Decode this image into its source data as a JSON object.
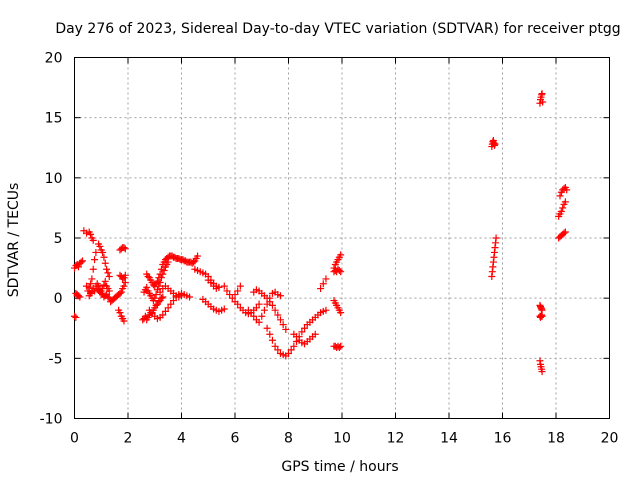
{
  "chart_data": {
    "type": "scatter",
    "title": "Day 276 of 2023, Sidereal Day-to-day VTEC variation (SDTVAR) for receiver ptgg",
    "xlabel": "GPS time / hours",
    "ylabel": "SDTVAR / TECUs",
    "xlim": [
      0,
      20
    ],
    "ylim": [
      -10,
      20
    ],
    "xticks": [
      0,
      2,
      4,
      6,
      8,
      10,
      12,
      14,
      16,
      18,
      20
    ],
    "yticks": [
      -10,
      -5,
      0,
      5,
      10,
      15,
      20
    ],
    "grid": true,
    "marker": "+",
    "color": "#ff0000",
    "series": [
      {
        "name": "SDTVAR",
        "x": [
          0.0,
          0.05,
          0.1,
          0.15,
          0.2,
          0.25,
          0.3,
          0.0,
          0.05,
          0.1,
          0.15,
          0.2,
          0.05,
          0.1,
          0.35,
          0.45,
          0.55,
          0.6,
          0.65,
          0.7,
          0.45,
          0.5,
          0.55,
          0.6,
          0.65,
          0.7,
          0.75,
          0.8,
          0.55,
          0.6,
          0.65,
          0.7,
          0.75,
          0.8,
          0.85,
          0.9,
          0.95,
          1.0,
          1.05,
          1.1,
          1.15,
          1.2,
          1.25,
          1.3,
          0.9,
          0.95,
          1.0,
          1.05,
          1.1,
          1.15,
          1.2,
          1.25,
          1.3,
          0.85,
          0.9,
          0.95,
          1.0,
          1.05,
          1.1,
          1.15,
          1.2,
          1.25,
          1.3,
          1.35,
          1.4,
          1.45,
          1.5,
          1.55,
          1.6,
          1.65,
          1.7,
          1.75,
          1.8,
          1.85,
          1.9,
          1.7,
          1.75,
          1.8,
          1.85,
          1.9,
          1.65,
          1.7,
          1.75,
          1.8,
          1.85,
          1.7,
          1.75,
          1.8,
          1.85,
          1.9,
          2.55,
          2.6,
          2.65,
          2.7,
          2.75,
          2.8,
          2.85,
          2.9,
          2.95,
          3.0,
          3.05,
          3.1,
          3.15,
          3.2,
          3.25,
          3.3,
          2.6,
          2.65,
          2.7,
          2.75,
          2.8,
          2.85,
          2.9,
          2.95,
          3.0,
          3.05,
          3.1,
          3.15,
          3.2,
          3.25,
          3.3,
          3.35,
          3.4,
          3.45,
          3.5,
          2.7,
          2.75,
          2.8,
          2.85,
          2.9,
          2.95,
          3.0,
          3.05,
          3.1,
          3.15,
          3.2,
          3.25,
          3.3,
          3.35,
          3.4,
          3.45,
          3.5,
          3.55,
          3.6,
          3.65,
          3.7,
          3.75,
          3.8,
          3.85,
          3.9,
          3.95,
          4.0,
          4.05,
          4.1,
          4.15,
          4.2,
          4.25,
          4.3,
          4.35,
          4.4,
          4.45,
          4.5,
          4.55,
          4.6,
          2.8,
          2.9,
          3.0,
          3.1,
          3.2,
          3.3,
          3.4,
          3.5,
          3.6,
          3.7,
          3.8,
          3.9,
          4.0,
          4.1,
          4.2,
          4.3,
          3.2,
          3.3,
          3.4,
          3.5,
          3.6,
          3.7,
          3.8,
          3.9,
          4.0,
          4.5,
          4.6,
          4.7,
          4.8,
          4.9,
          5.0,
          5.1,
          5.2,
          5.3,
          5.4,
          4.8,
          4.9,
          5.0,
          5.1,
          5.2,
          5.3,
          5.4,
          5.5,
          5.6,
          5.0,
          5.1,
          5.2,
          5.3,
          5.4,
          5.6,
          5.7,
          5.8,
          5.9,
          6.0,
          6.1,
          6.2,
          6.0,
          6.1,
          6.2,
          6.3,
          6.4,
          6.5,
          6.6,
          6.7,
          6.8,
          6.9,
          6.5,
          6.6,
          6.7,
          6.8,
          6.9,
          7.0,
          7.1,
          7.2,
          7.3,
          7.4,
          7.5,
          7.6,
          7.7,
          6.7,
          6.8,
          6.9,
          7.0,
          7.1,
          7.2,
          7.3,
          7.4,
          7.5,
          7.6,
          7.7,
          7.8,
          7.9,
          7.2,
          7.3,
          7.4,
          7.5,
          7.6,
          7.7,
          7.8,
          7.9,
          8.0,
          8.1,
          8.2,
          8.3,
          8.4,
          8.5,
          8.6,
          8.7,
          8.8,
          8.9,
          9.0,
          9.1,
          9.2,
          9.3,
          9.4,
          8.2,
          8.3,
          8.4,
          8.5,
          8.6,
          8.7,
          8.8,
          8.9,
          9.0,
          9.2,
          9.3,
          9.4,
          9.7,
          9.75,
          9.8,
          9.85,
          9.9,
          9.95,
          9.7,
          9.75,
          9.8,
          9.85,
          9.9,
          9.95,
          9.7,
          9.75,
          9.8,
          9.85,
          9.9,
          9.95,
          9.7,
          9.75,
          9.8,
          9.85,
          9.9,
          9.95,
          15.6,
          15.62,
          15.64,
          15.66,
          15.68,
          15.7,
          15.72,
          15.6,
          15.62,
          15.64,
          15.66,
          15.68,
          15.7,
          15.72,
          15.74,
          15.76,
          17.4,
          17.42,
          17.44,
          17.46,
          17.48,
          17.5,
          17.4,
          17.42,
          17.44,
          17.46,
          17.48,
          17.4,
          17.42,
          17.44,
          17.46,
          17.48,
          17.4,
          17.42,
          17.44,
          17.46,
          17.48,
          18.1,
          18.15,
          18.2,
          18.25,
          18.3,
          18.35,
          18.1,
          18.15,
          18.2,
          18.25,
          18.3,
          18.35,
          18.15,
          18.2,
          18.25,
          18.3,
          18.35,
          18.4
        ],
        "y": [
          2.5,
          2.7,
          2.8,
          2.6,
          2.9,
          3.0,
          3.1,
          -1.5,
          -1.6,
          0.3,
          0.2,
          0.1,
          0.4,
          0.2,
          5.6,
          5.4,
          5.5,
          5.3,
          5.0,
          4.8,
          1.0,
          0.6,
          0.9,
          1.2,
          1.6,
          2.4,
          3.2,
          3.8,
          0.2,
          0.4,
          0.5,
          0.8,
          0.6,
          1.0,
          1.2,
          1.0,
          0.8,
          0.6,
          0.8,
          1.1,
          1.4,
          1.0,
          0.8,
          0.6,
          4.5,
          4.3,
          4.0,
          3.8,
          3.4,
          2.9,
          2.4,
          2.1,
          1.8,
          0.8,
          0.7,
          0.5,
          0.4,
          0.3,
          0.1,
          0.2,
          0.3,
          0.1,
          0.0,
          -0.3,
          -0.2,
          -0.1,
          0.0,
          0.1,
          0.2,
          0.3,
          0.4,
          0.5,
          0.8,
          1.0,
          1.3,
          1.9,
          1.8,
          1.6,
          1.7,
          1.9,
          -1.0,
          -1.2,
          -1.5,
          -1.7,
          -1.9,
          4.0,
          4.1,
          4.2,
          4.2,
          4.1,
          -1.8,
          -1.7,
          -1.5,
          -1.8,
          -1.6,
          -1.4,
          -1.2,
          -1.3,
          -1.0,
          -0.8,
          -0.6,
          -0.5,
          -0.3,
          -0.2,
          0.0,
          0.1,
          0.5,
          0.7,
          0.9,
          0.6,
          0.4,
          0.2,
          0.0,
          -0.2,
          0.0,
          0.3,
          0.7,
          1.0,
          1.3,
          1.7,
          2.0,
          2.3,
          2.6,
          2.8,
          3.0,
          2.0,
          1.8,
          1.7,
          1.5,
          1.3,
          1.1,
          1.0,
          1.2,
          1.4,
          1.7,
          2.0,
          2.4,
          2.8,
          3.0,
          3.2,
          3.3,
          3.4,
          3.5,
          3.5,
          3.5,
          3.4,
          3.4,
          3.3,
          3.3,
          3.3,
          3.2,
          3.2,
          3.2,
          3.1,
          3.1,
          3.0,
          3.0,
          3.0,
          3.0,
          2.9,
          3.0,
          3.1,
          3.3,
          3.5,
          -1.0,
          -1.2,
          -1.5,
          -1.7,
          -1.6,
          -1.4,
          -1.1,
          -0.8,
          -0.5,
          -0.2,
          0.1,
          0.3,
          0.4,
          0.3,
          0.2,
          0.1,
          0.5,
          0.8,
          1.0,
          0.8,
          0.6,
          0.4,
          0.2,
          0.1,
          0.2,
          2.4,
          2.3,
          2.2,
          2.1,
          2.0,
          1.8,
          1.5,
          1.2,
          1.0,
          0.9,
          -0.1,
          -0.3,
          -0.5,
          -0.7,
          -0.9,
          -1.0,
          -1.1,
          -1.0,
          -0.9,
          1.5,
          1.3,
          1.0,
          0.8,
          0.9,
          1.0,
          0.6,
          0.3,
          0.0,
          0.3,
          0.6,
          1.0,
          -0.3,
          -0.5,
          -0.8,
          -1.0,
          -1.2,
          -1.3,
          -1.2,
          -1.0,
          -0.8,
          -0.5,
          -1.0,
          -1.2,
          -1.5,
          -1.8,
          -2.0,
          -1.5,
          -1.0,
          -0.5,
          0.0,
          0.4,
          0.5,
          0.3,
          0.2,
          0.5,
          0.7,
          0.6,
          0.4,
          0.2,
          0.0,
          -0.3,
          -0.6,
          -1.0,
          -1.4,
          -1.8,
          -2.2,
          -2.6,
          -2.5,
          -3.0,
          -3.5,
          -4.0,
          -4.3,
          -4.6,
          -4.7,
          -4.8,
          -4.6,
          -4.3,
          -4.0,
          -3.6,
          -3.2,
          -2.8,
          -2.5,
          -2.2,
          -2.0,
          -1.8,
          -1.6,
          -1.4,
          -1.2,
          -1.1,
          -1.0,
          -3.0,
          -3.2,
          -3.5,
          -3.7,
          -3.8,
          -3.6,
          -3.4,
          -3.2,
          -3.0,
          0.8,
          1.2,
          1.6,
          2.5,
          2.8,
          3.0,
          3.2,
          3.4,
          3.6,
          2.2,
          2.3,
          2.2,
          2.4,
          2.3,
          2.2,
          -0.2,
          -0.4,
          -0.6,
          -0.8,
          -1.0,
          -1.2,
          -4.0,
          -4.0,
          -4.1,
          -4.0,
          -4.1,
          -4.0,
          12.6,
          12.8,
          13.0,
          13.1,
          12.9,
          12.7,
          12.8,
          1.8,
          2.2,
          2.6,
          3.0,
          3.4,
          3.8,
          4.2,
          4.6,
          5.0,
          16.2,
          16.5,
          16.7,
          16.9,
          17.0,
          16.3,
          -0.6,
          -0.7,
          -0.8,
          -0.9,
          -1.0,
          -1.5,
          -1.6,
          -1.5,
          -1.4,
          -1.5,
          -5.2,
          -5.5,
          -5.7,
          -5.9,
          -6.1,
          5.0,
          5.1,
          5.2,
          5.3,
          5.4,
          5.5,
          6.8,
          7.0,
          7.2,
          7.5,
          7.8,
          8.0,
          8.5,
          8.8,
          9.0,
          9.1,
          9.2,
          9.0
        ]
      }
    ]
  }
}
